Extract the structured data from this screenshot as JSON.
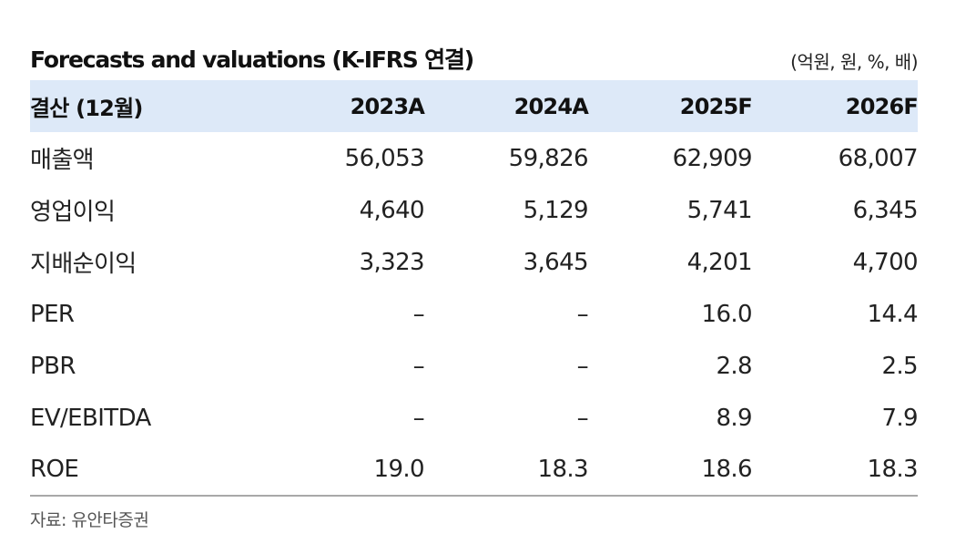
{
  "header": {
    "title": "Forecasts and valuations (K-IFRS 연결)",
    "unit": "(억원, 원, %, 배)"
  },
  "table": {
    "columns": [
      "결산 (12월)",
      "2023A",
      "2024A",
      "2025F",
      "2026F"
    ],
    "rows": [
      {
        "label": "매출액",
        "values": [
          "56,053",
          "59,826",
          "62,909",
          "68,007"
        ]
      },
      {
        "label": "영업이익",
        "values": [
          "4,640",
          "5,129",
          "5,741",
          "6,345"
        ]
      },
      {
        "label": "지배순이익",
        "values": [
          "3,323",
          "3,645",
          "4,201",
          "4,700"
        ]
      },
      {
        "label": "PER",
        "values": [
          "–",
          "–",
          "16.0",
          "14.4"
        ]
      },
      {
        "label": "PBR",
        "values": [
          "–",
          "–",
          "2.8",
          "2.5"
        ]
      },
      {
        "label": "EV/EBITDA",
        "values": [
          "–",
          "–",
          "8.9",
          "7.9"
        ]
      },
      {
        "label": "ROE",
        "values": [
          "19.0",
          "18.3",
          "18.6",
          "18.3"
        ]
      }
    ]
  },
  "footer": {
    "source": "자료: 유안타증권"
  },
  "colors": {
    "header_background": "#dde9f8",
    "bottom_rule": "#a9a9a9"
  }
}
